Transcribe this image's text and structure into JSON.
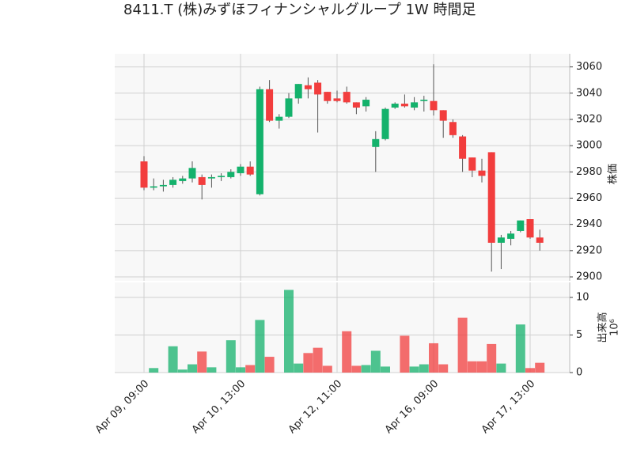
{
  "chart_data": {
    "type": "candlestick",
    "title": "8411.T (株)みずほフィナンシャルグループ 1W 時間足",
    "categories": [
      "Apr 09, 09:00",
      null,
      null,
      null,
      null,
      null,
      null,
      null,
      null,
      null,
      "Apr 10, 13:00",
      null,
      null,
      null,
      null,
      null,
      null,
      null,
      null,
      null,
      "Apr 12, 11:00",
      null,
      null,
      null,
      null,
      null,
      null,
      null,
      null,
      null,
      "Apr 16, 09:00",
      null,
      null,
      null,
      null,
      null,
      null,
      null,
      null,
      null,
      "Apr 17, 13:00",
      null
    ],
    "open": [
      2988,
      2968,
      2969,
      2970,
      2973,
      2975,
      2976,
      2975,
      2976,
      2976,
      2979,
      2984,
      2963,
      3043,
      3019,
      3022,
      3036,
      3046,
      3048,
      3041,
      3036,
      3041,
      3033,
      3030,
      2999,
      3005,
      3029,
      3032,
      3029,
      3034,
      3034,
      3027,
      3018,
      3007,
      2991,
      2981,
      2995,
      2926,
      2929,
      2935,
      2944,
      2930
    ],
    "high": [
      2992,
      2975,
      2974,
      2976,
      2977,
      2988,
      2978,
      2978,
      2979,
      2982,
      2986,
      2988,
      3045,
      3050,
      3024,
      3040,
      3047,
      3052,
      3050,
      3041,
      3042,
      3045,
      3033,
      3037,
      3011,
      3029,
      3033,
      3039,
      3037,
      3038,
      3062,
      3027,
      3020,
      3008,
      2991,
      2990,
      2995,
      2932,
      2935,
      2943,
      2944,
      2936
    ],
    "low": [
      2966,
      2966,
      2965,
      2968,
      2971,
      2972,
      2959,
      2968,
      2973,
      2975,
      2977,
      2977,
      2962,
      3018,
      3013,
      3021,
      3032,
      3036,
      3010,
      3032,
      3033,
      3032,
      3024,
      3026,
      2980,
      3004,
      3028,
      3029,
      3027,
      3026,
      3023,
      3006,
      3006,
      2980,
      2976,
      2972,
      2904,
      2906,
      2924,
      2934,
      2929,
      2920
    ],
    "close": [
      2968,
      2969,
      2970,
      2974,
      2975,
      2983,
      2970,
      2976,
      2977,
      2980,
      2984,
      2978,
      3043,
      3019,
      3022,
      3036,
      3047,
      3043,
      3039,
      3034,
      3034,
      3033,
      3029,
      3035,
      3005,
      3028,
      3032,
      3030,
      3033,
      3035,
      3027,
      3019,
      3008,
      2990,
      2981,
      2977,
      2926,
      2930,
      2933,
      2943,
      2930,
      2926
    ],
    "volume": [
      0,
      0.6,
      0,
      3.5,
      0.4,
      1.1,
      2.8,
      0.7,
      0,
      4.3,
      0.7,
      1.0,
      7.0,
      2.1,
      0,
      11.0,
      1.2,
      2.6,
      3.3,
      0.9,
      0,
      5.5,
      0.9,
      1.0,
      2.9,
      0.8,
      0,
      4.9,
      0.8,
      1.1,
      3.9,
      1.1,
      0,
      7.3,
      1.5,
      1.5,
      3.8,
      1.2,
      0,
      6.4,
      0.6,
      1.3
    ],
    "up_color": "#14b26c",
    "down_color": "#f23d3d",
    "ylim": [
      2897,
      3070
    ],
    "yticks": [
      2900,
      2920,
      2940,
      2960,
      2980,
      3000,
      3020,
      3040,
      3060
    ],
    "y_label": "株価",
    "volume_ylim": [
      0,
      12
    ],
    "volume_yticks": [
      0,
      5,
      10
    ],
    "volume_label": "出来高",
    "volume_offset": "10⁶",
    "grid": true
  }
}
